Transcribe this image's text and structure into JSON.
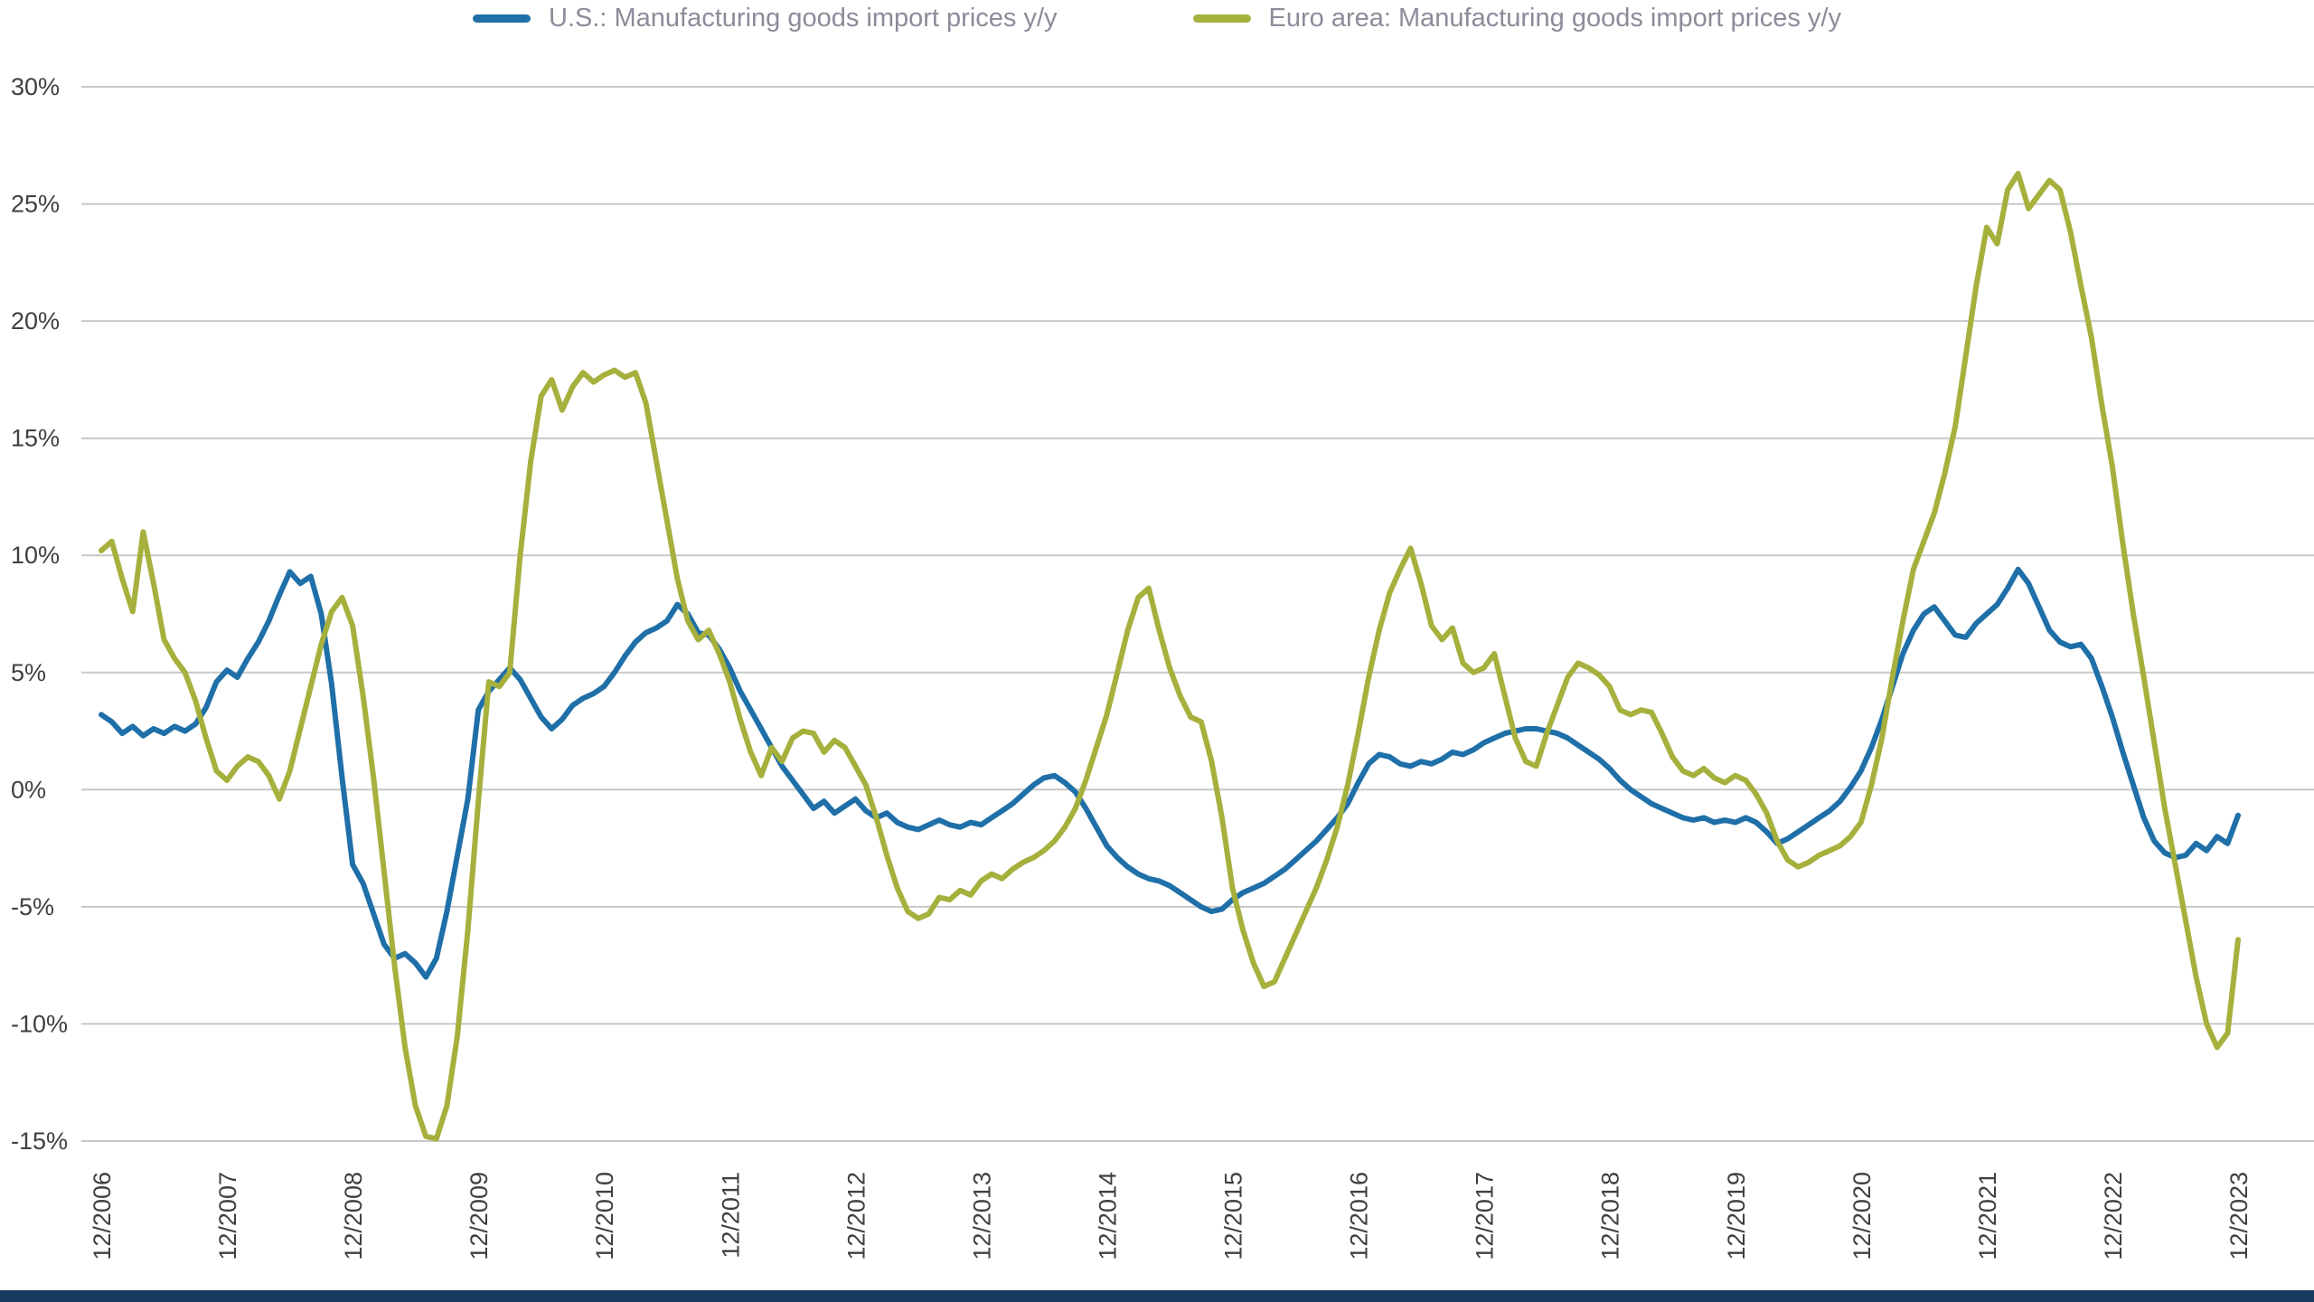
{
  "colors": {
    "background": "#ffffff",
    "grid": "#c8c8c8",
    "axis_text": "#3f3f44",
    "legend_text": "#8d8b99",
    "us_line": "#1f6fa8",
    "euro_line": "#a6b03c",
    "footer_bar": "#163a5f"
  },
  "chart_data": {
    "type": "line",
    "title": "",
    "xlabel": "",
    "ylabel": "",
    "ylim": [
      -15,
      30
    ],
    "grid": "horizontal",
    "legend_position": "top-center",
    "x_unit": "monthly",
    "x_tick_interval": 12,
    "x_tick_labels": [
      "12/2006",
      "12/2007",
      "12/2008",
      "12/2009",
      "12/2010",
      "12/2011",
      "12/2012",
      "12/2013",
      "12/2014",
      "12/2015",
      "12/2016",
      "12/2017",
      "12/2018",
      "12/2019",
      "12/2020",
      "12/2021",
      "12/2022",
      "12/2023"
    ],
    "yticks": [
      {
        "value": 30,
        "label": "30%"
      },
      {
        "value": 25,
        "label": "25%"
      },
      {
        "value": 20,
        "label": "20%"
      },
      {
        "value": 15,
        "label": "15%"
      },
      {
        "value": 10,
        "label": "10%"
      },
      {
        "value": 5,
        "label": "5%"
      },
      {
        "value": 0,
        "label": "0%"
      },
      {
        "value": -5,
        "label": "-5%"
      },
      {
        "value": -10,
        "label": "-10%"
      },
      {
        "value": -15,
        "label": "-15%"
      }
    ],
    "series": [
      {
        "name": "U.S.: Manufacturing goods import prices y/y",
        "color": "#1f6fa8",
        "values": [
          3.2,
          2.9,
          2.4,
          2.7,
          2.3,
          2.6,
          2.4,
          2.7,
          2.5,
          2.8,
          3.5,
          4.6,
          5.1,
          4.8,
          5.6,
          6.3,
          7.2,
          8.3,
          9.3,
          8.8,
          9.1,
          7.5,
          4.5,
          0.5,
          -3.2,
          -4.0,
          -5.3,
          -6.6,
          -7.2,
          -7.0,
          -7.4,
          -8.0,
          -7.2,
          -5.2,
          -2.8,
          -0.4,
          3.4,
          4.2,
          4.7,
          5.2,
          4.7,
          3.9,
          3.1,
          2.6,
          3.0,
          3.6,
          3.9,
          4.1,
          4.4,
          5.0,
          5.7,
          6.3,
          6.7,
          6.9,
          7.2,
          7.9,
          7.5,
          6.7,
          6.6,
          6.0,
          5.2,
          4.2,
          3.4,
          2.6,
          1.8,
          1.0,
          0.4,
          -0.2,
          -0.8,
          -0.5,
          -1.0,
          -0.7,
          -0.4,
          -0.9,
          -1.2,
          -1.0,
          -1.4,
          -1.6,
          -1.7,
          -1.5,
          -1.3,
          -1.5,
          -1.6,
          -1.4,
          -1.5,
          -1.2,
          -0.9,
          -0.6,
          -0.2,
          0.2,
          0.5,
          0.6,
          0.3,
          -0.1,
          -0.8,
          -1.6,
          -2.4,
          -2.9,
          -3.3,
          -3.6,
          -3.8,
          -3.9,
          -4.1,
          -4.4,
          -4.7,
          -5.0,
          -5.2,
          -5.1,
          -4.7,
          -4.4,
          -4.2,
          -4.0,
          -3.7,
          -3.4,
          -3.0,
          -2.6,
          -2.2,
          -1.7,
          -1.2,
          -0.6,
          0.3,
          1.1,
          1.5,
          1.4,
          1.1,
          1.0,
          1.2,
          1.1,
          1.3,
          1.6,
          1.5,
          1.7,
          2.0,
          2.2,
          2.4,
          2.5,
          2.6,
          2.6,
          2.5,
          2.4,
          2.2,
          1.9,
          1.6,
          1.3,
          0.9,
          0.4,
          0.0,
          -0.3,
          -0.6,
          -0.8,
          -1.0,
          -1.2,
          -1.3,
          -1.2,
          -1.4,
          -1.3,
          -1.4,
          -1.2,
          -1.4,
          -1.8,
          -2.3,
          -2.1,
          -1.8,
          -1.5,
          -1.2,
          -0.9,
          -0.5,
          0.1,
          0.8,
          1.8,
          3.0,
          4.4,
          5.8,
          6.8,
          7.5,
          7.8,
          7.2,
          6.6,
          6.5,
          7.1,
          7.5,
          7.9,
          8.6,
          9.4,
          8.8,
          7.8,
          6.8,
          6.3,
          6.1,
          6.2,
          5.6,
          4.4,
          3.1,
          1.6,
          0.2,
          -1.2,
          -2.2,
          -2.7,
          -2.9,
          -2.8,
          -2.3,
          -2.6,
          -2.0,
          -2.3,
          -1.1
        ]
      },
      {
        "name": "Euro area: Manufacturing goods import prices y/y",
        "color": "#a6b03c",
        "values": [
          10.2,
          10.6,
          9.0,
          7.6,
          11.0,
          8.8,
          6.4,
          5.6,
          5.0,
          3.8,
          2.2,
          0.8,
          0.4,
          1.0,
          1.4,
          1.2,
          0.6,
          -0.4,
          0.8,
          2.6,
          4.4,
          6.2,
          7.6,
          8.2,
          7.0,
          4.0,
          0.5,
          -3.5,
          -7.5,
          -11.0,
          -13.5,
          -14.8,
          -14.9,
          -13.5,
          -10.5,
          -6.0,
          -0.5,
          4.6,
          4.4,
          5.0,
          10.0,
          14.0,
          16.8,
          17.5,
          16.2,
          17.2,
          17.8,
          17.4,
          17.7,
          17.9,
          17.6,
          17.8,
          16.5,
          14.0,
          11.5,
          9.0,
          7.2,
          6.4,
          6.8,
          5.8,
          4.6,
          3.0,
          1.6,
          0.6,
          1.8,
          1.2,
          2.2,
          2.5,
          2.4,
          1.6,
          2.1,
          1.8,
          1.0,
          0.2,
          -1.2,
          -2.8,
          -4.2,
          -5.2,
          -5.5,
          -5.3,
          -4.6,
          -4.7,
          -4.3,
          -4.5,
          -3.9,
          -3.6,
          -3.8,
          -3.4,
          -3.1,
          -2.9,
          -2.6,
          -2.2,
          -1.6,
          -0.8,
          0.4,
          1.8,
          3.2,
          5.0,
          6.8,
          8.2,
          8.6,
          6.8,
          5.2,
          4.0,
          3.1,
          2.9,
          1.2,
          -1.2,
          -4.2,
          -6.0,
          -7.4,
          -8.4,
          -8.2,
          -7.2,
          -6.2,
          -5.2,
          -4.2,
          -3.0,
          -1.6,
          0.2,
          2.4,
          4.8,
          6.8,
          8.4,
          9.4,
          10.3,
          8.8,
          7.0,
          6.4,
          6.9,
          5.4,
          5.0,
          5.2,
          5.8,
          4.0,
          2.2,
          1.2,
          1.0,
          2.4,
          3.6,
          4.8,
          5.4,
          5.2,
          4.9,
          4.4,
          3.4,
          3.2,
          3.4,
          3.3,
          2.4,
          1.4,
          0.8,
          0.6,
          0.9,
          0.5,
          0.3,
          0.6,
          0.4,
          -0.2,
          -1.0,
          -2.2,
          -3.0,
          -3.3,
          -3.1,
          -2.8,
          -2.6,
          -2.4,
          -2.0,
          -1.4,
          0.2,
          2.2,
          4.8,
          7.2,
          9.4,
          10.6,
          11.8,
          13.5,
          15.5,
          18.5,
          21.5,
          24.0,
          23.3,
          25.6,
          26.3,
          24.8,
          25.4,
          26.0,
          25.6,
          23.8,
          21.5,
          19.3,
          16.4,
          13.8,
          10.5,
          7.5,
          4.8,
          2.0,
          -0.8,
          -3.2,
          -5.6,
          -8.0,
          -10.0,
          -11.0,
          -10.4,
          -6.4
        ]
      }
    ]
  }
}
